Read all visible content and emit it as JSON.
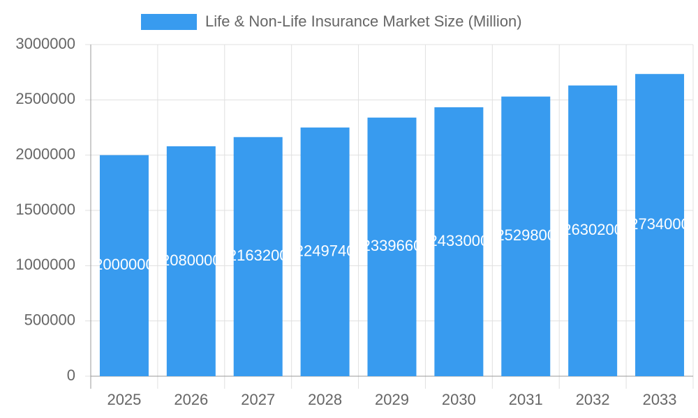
{
  "chart_data": {
    "type": "bar",
    "categories": [
      "2025",
      "2026",
      "2027",
      "2028",
      "2029",
      "2030",
      "2031",
      "2032",
      "2033"
    ],
    "series": [
      {
        "name": "Life & Non-Life Insurance Market Size (Million)",
        "color": "#389bef",
        "values": [
          2000000,
          2080000,
          2163200,
          2249740,
          2339660,
          2433000,
          2529800,
          2630200,
          2734000
        ]
      }
    ],
    "ylim": [
      0,
      3000000
    ],
    "yticks": [
      0,
      500000,
      1000000,
      1500000,
      2000000,
      2500000,
      3000000
    ],
    "grid": true,
    "value_labels_inside": true
  }
}
